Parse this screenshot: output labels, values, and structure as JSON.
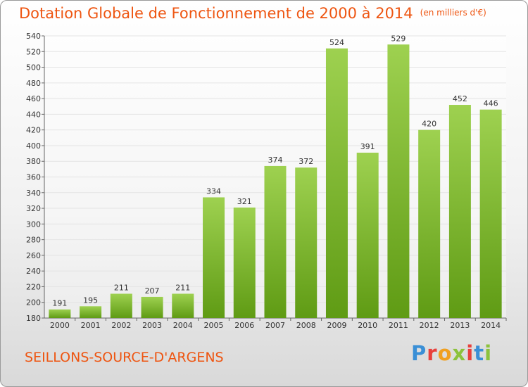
{
  "title": {
    "main": "Dotation Globale de Fonctionnement de 2000 à 2014",
    "unit": "(en milliers d'€)"
  },
  "commune": "SEILLONS-SOURCE-D'ARGENS",
  "logo": {
    "text": "Proxiti",
    "letter_colors": [
      "#3a8fd6",
      "#e8403c",
      "#f0a020",
      "#8cc23c",
      "#e8403c",
      "#3a8fd6",
      "#8cc23c"
    ]
  },
  "colors": {
    "accent": "#ee5511",
    "bar_top": "#9ed150",
    "bar_bottom": "#5f9b14",
    "grid": "#e4e4e4"
  },
  "chart_data": {
    "type": "bar",
    "categories": [
      "2000",
      "2001",
      "2002",
      "2003",
      "2004",
      "2005",
      "2006",
      "2007",
      "2008",
      "2009",
      "2010",
      "2011",
      "2012",
      "2013",
      "2014"
    ],
    "values": [
      191,
      195,
      211,
      207,
      211,
      334,
      321,
      374,
      372,
      524,
      391,
      529,
      420,
      452,
      446
    ],
    "ylim": [
      180,
      540
    ],
    "yticks": [
      180,
      200,
      220,
      240,
      260,
      280,
      300,
      320,
      340,
      360,
      380,
      400,
      420,
      440,
      460,
      480,
      500,
      520,
      540
    ],
    "grid": true,
    "data_labels": true
  }
}
